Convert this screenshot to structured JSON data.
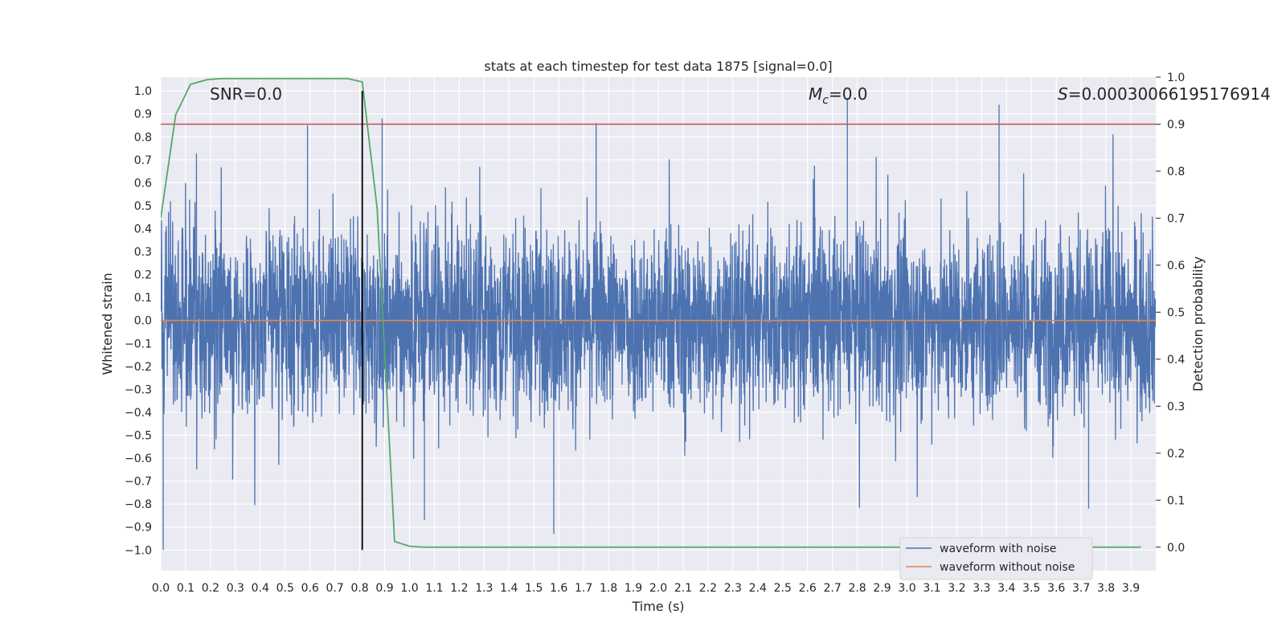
{
  "chart_data": {
    "type": "line",
    "title": "stats at each timestep for test data 1875 [signal=0.0]",
    "xlabel": "Time (s)",
    "ylabel_left": "Whitened strain",
    "ylabel_right": "Detection probability",
    "xlim": [
      0.0,
      4.0
    ],
    "ylim_left": [
      -1.09,
      1.06
    ],
    "ylim_right": [
      -0.05,
      1.0
    ],
    "x_ticks": [
      "0.0",
      "0.1",
      "0.2",
      "0.3",
      "0.4",
      "0.5",
      "0.6",
      "0.7",
      "0.8",
      "0.9",
      "1.0",
      "1.1",
      "1.2",
      "1.3",
      "1.4",
      "1.5",
      "1.6",
      "1.7",
      "1.8",
      "1.9",
      "2.0",
      "2.1",
      "2.2",
      "2.3",
      "2.4",
      "2.5",
      "2.6",
      "2.7",
      "2.8",
      "2.9",
      "3.0",
      "3.1",
      "3.2",
      "3.3",
      "3.4",
      "3.5",
      "3.6",
      "3.7",
      "3.8",
      "3.9"
    ],
    "y_ticks_left": [
      "1.0",
      "0.9",
      "0.8",
      "0.7",
      "0.6",
      "0.5",
      "0.4",
      "0.3",
      "0.2",
      "0.1",
      "0.0",
      "−0.1",
      "−0.2",
      "−0.3",
      "−0.4",
      "−0.5",
      "−0.6",
      "−0.7",
      "−0.8",
      "−0.9",
      "−1.0"
    ],
    "y_ticks_right": [
      "1.0",
      "0.9",
      "0.8",
      "0.7",
      "0.6",
      "0.5",
      "0.4",
      "0.3",
      "0.2",
      "0.1",
      "0.0"
    ],
    "annotations": {
      "snr": "SNR=0.0",
      "mc_symbol": "M",
      "mc_sub": "c",
      "mc_value": "=0.0",
      "s_symbol": "S",
      "s_value": "=0.00030066195176914"
    },
    "series": [
      {
        "name": "waveform with noise",
        "axis": "left",
        "color": "#4c72b0",
        "description": "noisy whitened strain, approx. range -1.0 to 0.97",
        "extremes": [
          {
            "t": 0.01,
            "v": -1.0
          },
          {
            "t": 0.59,
            "v": 0.85
          },
          {
            "t": 0.81,
            "v": -0.77
          },
          {
            "t": 0.89,
            "v": 0.88
          },
          {
            "t": 1.06,
            "v": -0.87
          },
          {
            "t": 1.58,
            "v": -0.93
          },
          {
            "t": 1.75,
            "v": 0.86
          },
          {
            "t": 2.76,
            "v": 0.97
          },
          {
            "t": 3.37,
            "v": 0.94
          },
          {
            "t": 3.73,
            "v": -0.82
          }
        ]
      },
      {
        "name": "waveform without noise",
        "axis": "left",
        "color": "#dd8452",
        "x": [
          0.0,
          4.0
        ],
        "y": [
          0.0,
          0.0
        ]
      },
      {
        "name": "detection probability",
        "axis": "right",
        "color": "#55a868",
        "x": [
          0.0,
          0.06,
          0.12,
          0.19,
          0.25,
          0.31,
          0.37,
          0.44,
          0.5,
          0.56,
          0.62,
          0.69,
          0.75,
          0.81,
          0.87,
          0.94,
          1.0,
          1.06,
          1.5,
          2.0,
          2.5,
          3.0,
          3.5,
          3.94
        ],
        "y": [
          0.7,
          0.92,
          0.985,
          0.995,
          0.997,
          0.997,
          0.997,
          0.997,
          0.997,
          0.997,
          0.997,
          0.997,
          0.997,
          0.99,
          0.72,
          0.012,
          0.002,
          0.0,
          0.0,
          0.0,
          0.0,
          0.0,
          0.0,
          0.0
        ]
      }
    ],
    "threshold": {
      "axis": "right",
      "value": 0.9,
      "color": "#c44e52"
    },
    "vertical_marker": {
      "x": 0.81,
      "color": "#000000"
    }
  }
}
